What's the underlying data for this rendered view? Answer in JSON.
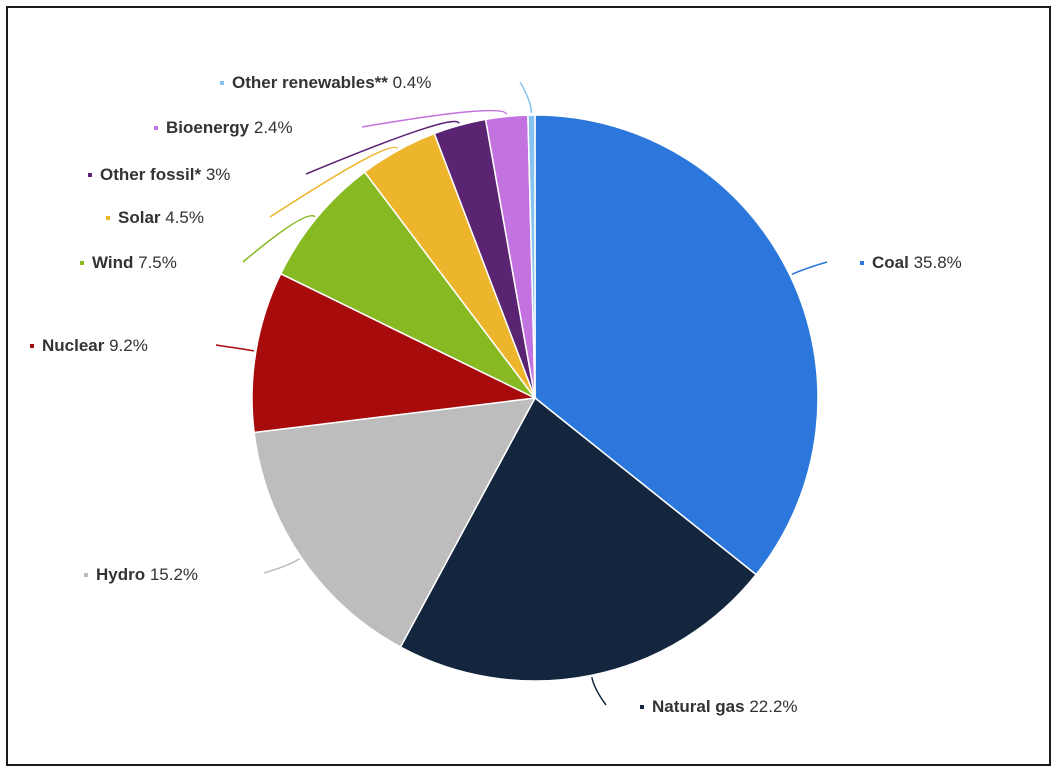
{
  "chart_data": {
    "type": "pie",
    "title": "",
    "slices": [
      {
        "name": "Coal",
        "value": 35.8,
        "label": "35.8%",
        "color": "#2b77db"
      },
      {
        "name": "Natural gas",
        "value": 22.2,
        "label": "22.2%",
        "color": "#13263d"
      },
      {
        "name": "Hydro",
        "value": 15.2,
        "label": "15.2%",
        "color": "#bdbdbd"
      },
      {
        "name": "Nuclear",
        "value": 9.2,
        "label": "9.2%",
        "color": "#a70b0b"
      },
      {
        "name": "Wind",
        "value": 7.5,
        "label": "7.5%",
        "color": "#86b922"
      },
      {
        "name": "Solar",
        "value": 4.5,
        "label": "4.5%",
        "color": "#ecb52b"
      },
      {
        "name": "Other fossil*",
        "value": 3,
        "label": "3%",
        "color": "#5a2472"
      },
      {
        "name": "Bioenergy",
        "value": 2.4,
        "label": "2.4%",
        "color": "#c373df"
      },
      {
        "name": "Other renewables**",
        "value": 0.4,
        "label": "0.4%",
        "color": "#86c3f0"
      }
    ],
    "legend": "data labels beside slices"
  }
}
